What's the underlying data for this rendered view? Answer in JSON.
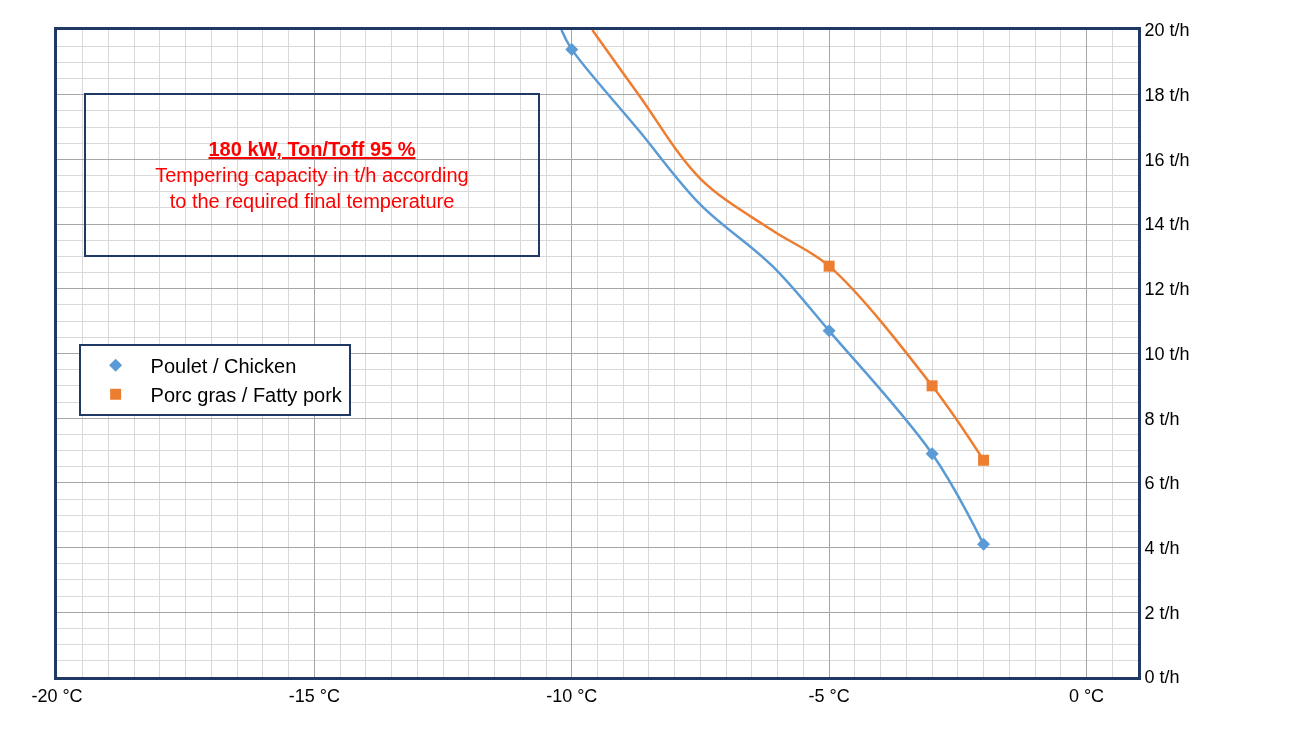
{
  "chart_data": {
    "type": "line",
    "title": "180 kW, Ton/Toff 95 %",
    "subtitle": "Tempering capacity in t/h according to the required final temperature",
    "xlim": [
      -20,
      1
    ],
    "xticks": [
      {
        "value": -20,
        "label": "-20 °C"
      },
      {
        "value": -15,
        "label": "-15 °C"
      },
      {
        "value": -10,
        "label": "-10 °C"
      },
      {
        "value": -5,
        "label": "-5 °C"
      },
      {
        "value": 0,
        "label": "0 °C"
      }
    ],
    "ylim": [
      0,
      20
    ],
    "yticks": [
      {
        "value": 0,
        "label": "0 t/h"
      },
      {
        "value": 2,
        "label": "2 t/h"
      },
      {
        "value": 4,
        "label": "4 t/h"
      },
      {
        "value": 6,
        "label": "6 t/h"
      },
      {
        "value": 8,
        "label": "8 t/h"
      },
      {
        "value": 10,
        "label": "10 t/h"
      },
      {
        "value": 12,
        "label": "12 t/h"
      },
      {
        "value": 14,
        "label": "14 t/h"
      },
      {
        "value": 16,
        "label": "16 t/h"
      },
      {
        "value": 18,
        "label": "18 t/h"
      },
      {
        "value": 20,
        "label": "20 t/h"
      }
    ],
    "grid": true,
    "legend": "left",
    "line_style": "solid",
    "series": [
      {
        "color": "#5b9bd5",
        "marker": "none",
        "x": [
          -10.2,
          -10,
          -8.7,
          -7.5,
          -6.1,
          -5,
          -3,
          -2
        ],
        "values": [
          20,
          19.4,
          16.9,
          14.6,
          12.7,
          10.7,
          6.9,
          4.1
        ]
      },
      {
        "color": "#ed7d31",
        "marker": "none",
        "x": [
          -9.6,
          -8.7,
          -7.5,
          -6.1,
          -5,
          -3,
          -2
        ],
        "values": [
          20,
          18.0,
          15.4,
          13.8,
          12.7,
          9.0,
          6.7
        ]
      },
      {
        "name": "Poulet / Chicken",
        "type": "scatter",
        "color": "#5b9bd5",
        "marker": "diamond",
        "x": [
          -10,
          -5,
          -3,
          -2
        ],
        "values": [
          19.4,
          10.7,
          6.9,
          4.1
        ]
      },
      {
        "name": "Porc gras / Fatty pork",
        "type": "scatter",
        "color": "#ed7d31",
        "marker": "square",
        "x": [
          -5,
          -3,
          -2
        ],
        "values": [
          12.7,
          9.0,
          6.7
        ]
      }
    ]
  }
}
